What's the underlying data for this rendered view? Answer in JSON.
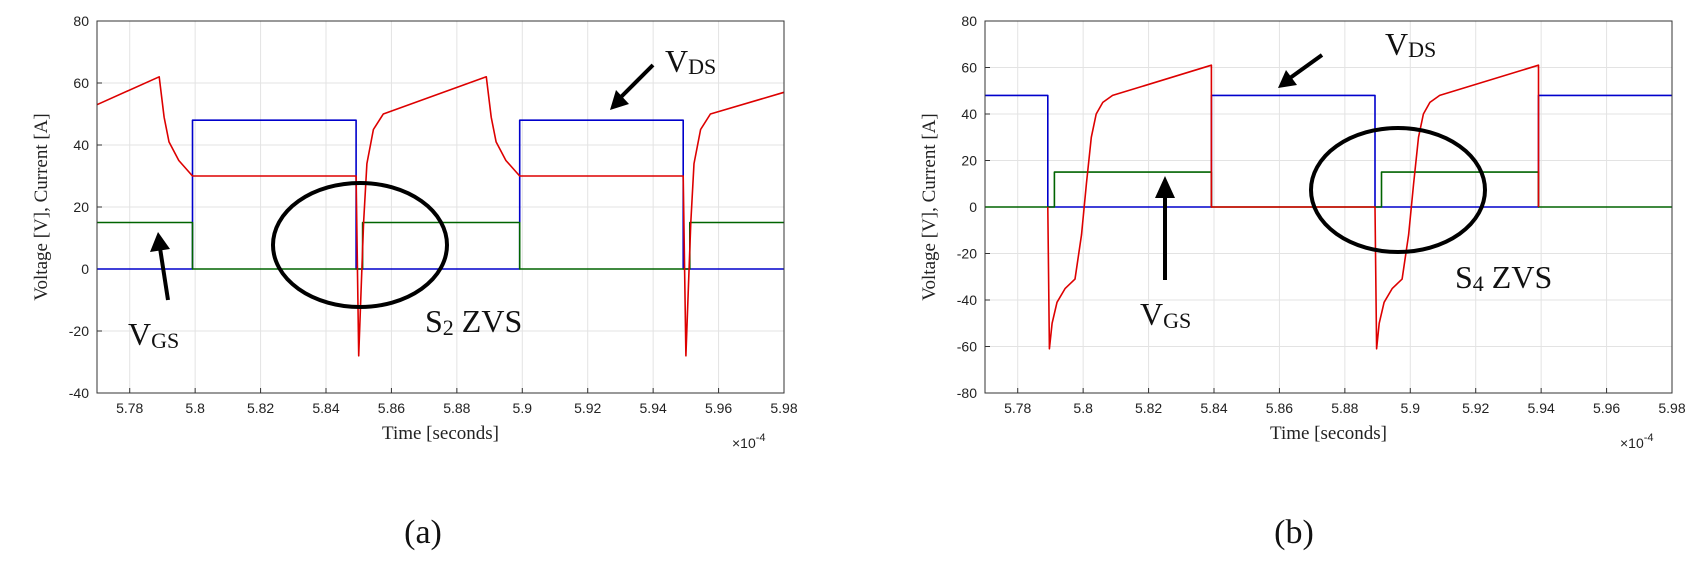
{
  "chart_data": [
    {
      "type": "line",
      "panel_label": "(a)",
      "xlabel": "Time [seconds]",
      "ylabel": "Voltage [V], Current [A]",
      "x_exponent_label": "×10",
      "x_exponent_power": "-4",
      "xlim": [
        5.77,
        5.98
      ],
      "ylim": [
        -40,
        80
      ],
      "xticks": [
        5.78,
        5.8,
        5.82,
        5.84,
        5.86,
        5.88,
        5.9,
        5.92,
        5.94,
        5.96,
        5.98
      ],
      "xtick_labels": [
        "5.78",
        "5.8",
        "5.82",
        "5.84",
        "5.86",
        "5.88",
        "5.9",
        "5.92",
        "5.94",
        "5.96",
        "5.98"
      ],
      "yticks": [
        -40,
        -20,
        0,
        20,
        40,
        60,
        80
      ],
      "ytick_labels": [
        "-40",
        "-20",
        "0",
        "20",
        "40",
        "60",
        "80"
      ],
      "grid": true,
      "series": [
        {
          "color": "#0000cc",
          "x": [
            5.77,
            5.7992,
            5.7992,
            5.8492,
            5.8492,
            5.8992,
            5.8992,
            5.9492,
            5.9492,
            5.98
          ],
          "y": [
            0,
            0,
            48,
            48,
            0,
            0,
            48,
            48,
            0,
            0
          ]
        },
        {
          "color": "#006400",
          "x": [
            5.77,
            5.7992,
            5.7992,
            5.8512,
            5.8512,
            5.8992,
            5.8992,
            5.9512,
            5.9512,
            5.98
          ],
          "y": [
            15,
            15,
            0,
            0,
            15,
            15,
            0,
            0,
            15,
            15
          ]
        },
        {
          "color": "#dd0000",
          "x": [
            5.77,
            5.789,
            5.7905,
            5.792,
            5.795,
            5.7992,
            5.8492,
            5.85,
            5.8508,
            5.8515,
            5.8525,
            5.8545,
            5.8575,
            5.889,
            5.8905,
            5.892,
            5.895,
            5.8992,
            5.9492,
            5.95,
            5.9508,
            5.9515,
            5.9525,
            5.9545,
            5.9575,
            5.98
          ],
          "y": [
            53,
            62,
            49,
            41,
            35,
            30,
            30,
            -28,
            -5,
            15,
            34,
            45,
            50,
            62,
            49,
            41,
            35,
            30,
            30,
            -28,
            -5,
            15,
            34,
            45,
            50,
            57
          ]
        }
      ],
      "annotations": [
        {
          "text": "V",
          "sub": "DS"
        },
        {
          "text": "V",
          "sub": "GS"
        },
        {
          "text": "S",
          "sub": "2",
          "after": " ZVS"
        }
      ]
    },
    {
      "type": "line",
      "panel_label": "(b)",
      "xlabel": "Time [seconds]",
      "ylabel": "Voltage [V], Current [A]",
      "x_exponent_label": "×10",
      "x_exponent_power": "-4",
      "xlim": [
        5.77,
        5.98
      ],
      "ylim": [
        -80,
        80
      ],
      "xticks": [
        5.78,
        5.8,
        5.82,
        5.84,
        5.86,
        5.88,
        5.9,
        5.92,
        5.94,
        5.96,
        5.98
      ],
      "xtick_labels": [
        "5.78",
        "5.8",
        "5.82",
        "5.84",
        "5.86",
        "5.88",
        "5.9",
        "5.92",
        "5.94",
        "5.96",
        "5.98"
      ],
      "yticks": [
        -80,
        -60,
        -40,
        -20,
        0,
        20,
        40,
        60,
        80
      ],
      "ytick_labels": [
        "-80",
        "-60",
        "-40",
        "-20",
        "0",
        "20",
        "40",
        "60",
        "80"
      ],
      "grid": true,
      "series": [
        {
          "color": "#0000cc",
          "x": [
            5.77,
            5.7892,
            5.7892,
            5.8392,
            5.8392,
            5.8892,
            5.8892,
            5.9392,
            5.9392,
            5.98
          ],
          "y": [
            48,
            48,
            0,
            0,
            48,
            48,
            0,
            0,
            48,
            48
          ]
        },
        {
          "color": "#006400",
          "x": [
            5.77,
            5.7912,
            5.7912,
            5.8392,
            5.8392,
            5.8912,
            5.8912,
            5.9392,
            5.9392,
            5.98
          ],
          "y": [
            0,
            0,
            15,
            15,
            0,
            0,
            15,
            15,
            0,
            0
          ]
        },
        {
          "color": "#dd0000",
          "x": [
            5.7892,
            5.7897,
            5.7905,
            5.792,
            5.7945,
            5.7975,
            5.7995,
            5.801,
            5.8025,
            5.804,
            5.806,
            5.809,
            5.8392,
            5.8392,
            5.8892,
            5.8897,
            5.8905,
            5.892,
            5.8945,
            5.8975,
            5.8995,
            5.901,
            5.9025,
            5.904,
            5.906,
            5.909,
            5.9392,
            5.9392
          ],
          "y": [
            0,
            -61,
            -50,
            -41,
            -35,
            -31,
            -12,
            10,
            30,
            40,
            45,
            48,
            61,
            0,
            0,
            -61,
            -50,
            -41,
            -35,
            -31,
            -12,
            10,
            30,
            40,
            45,
            48,
            61,
            0
          ]
        }
      ],
      "annotations": [
        {
          "text": "V",
          "sub": "DS"
        },
        {
          "text": "V",
          "sub": "GS"
        },
        {
          "text": "S",
          "sub": "4",
          "after": " ZVS"
        }
      ]
    }
  ]
}
